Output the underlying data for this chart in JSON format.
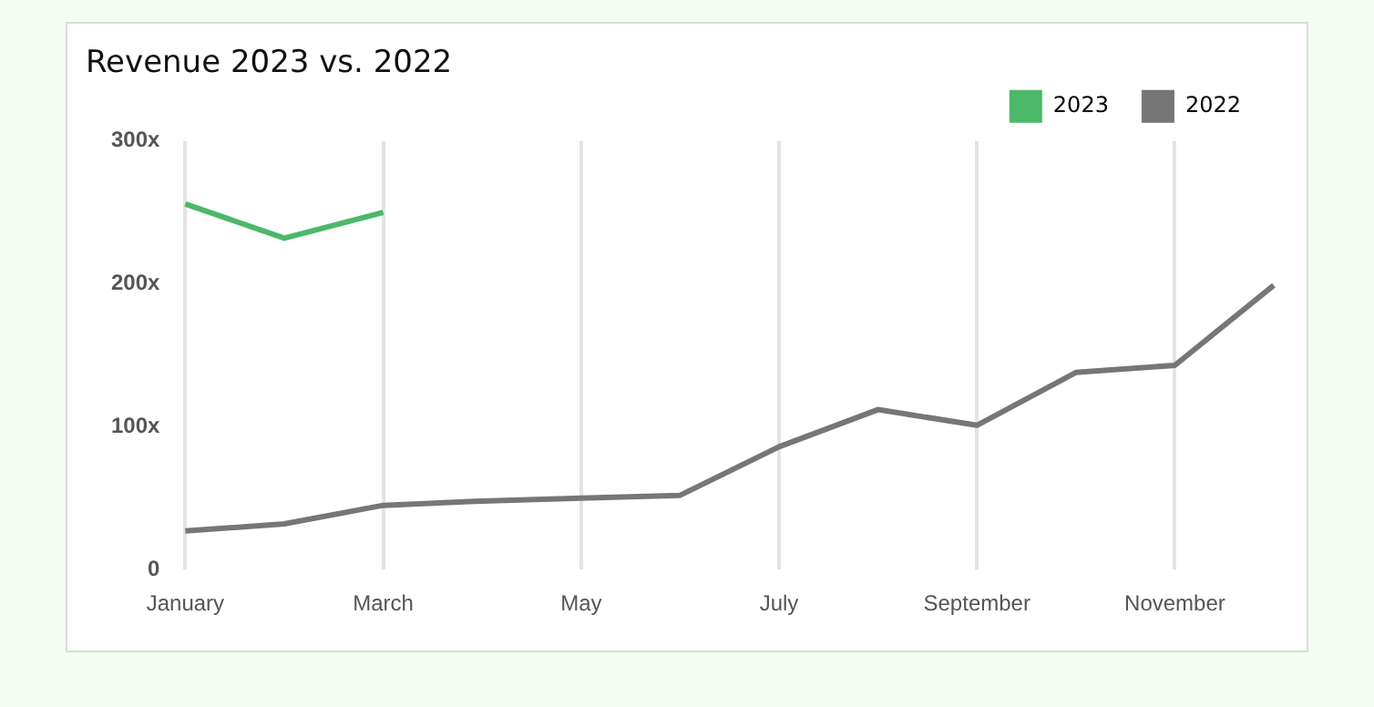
{
  "chart_data": {
    "type": "line",
    "title": "Revenue 2023 vs. 2022",
    "categories": [
      "January",
      null,
      "March",
      null,
      "May",
      null,
      "July",
      null,
      "September",
      null,
      "November",
      null
    ],
    "series": [
      {
        "name": "2023",
        "color": "#4cb86a",
        "values": [
          256,
          232,
          250,
          null,
          null,
          null,
          null,
          null,
          null,
          null,
          null,
          null
        ]
      },
      {
        "name": "2022",
        "color": "#767676",
        "values": [
          27,
          32,
          45,
          48,
          50,
          52,
          86,
          112,
          101,
          138,
          143,
          199
        ]
      }
    ],
    "ylim": [
      0,
      300
    ],
    "yticks": [
      {
        "value": 0,
        "label": "0"
      },
      {
        "value": 100,
        "label": "100x"
      },
      {
        "value": 200,
        "label": "200x"
      },
      {
        "value": 300,
        "label": "300x"
      }
    ],
    "grid": "x",
    "legend": "top right",
    "marker": "none",
    "line_style": "solid"
  }
}
